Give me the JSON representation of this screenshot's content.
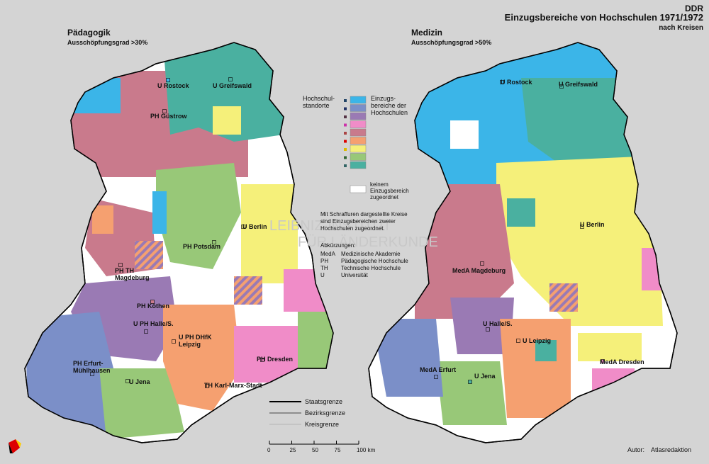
{
  "header": {
    "country": "DDR",
    "title": "Einzugsbereiche von Hochschulen 1971/1972",
    "subtitle": "nach Kreisen"
  },
  "maps": [
    {
      "title": "Pädagogik",
      "subtitle": "Ausschöpfungsgrad >30%",
      "places": [
        {
          "label": [
            "U Rostock"
          ]
        },
        {
          "label": [
            "U Greifswald"
          ]
        },
        {
          "label": [
            "PH Güstrow"
          ]
        },
        {
          "label": [
            "U Berlin"
          ]
        },
        {
          "label": [
            "PH Potsdam"
          ]
        },
        {
          "label": [
            "PH TH",
            "Magdeburg"
          ]
        },
        {
          "label": [
            "PH Köthen"
          ]
        },
        {
          "label": [
            "U PH Halle/S."
          ]
        },
        {
          "label": [
            "U PH DHfK",
            "Leipzig"
          ]
        },
        {
          "label": [
            "PH Dresden"
          ]
        },
        {
          "label": [
            "PH Erfurt-",
            "Mühlhausen"
          ]
        },
        {
          "label": [
            "U Jena"
          ]
        },
        {
          "label": [
            "TH Karl-Marx-Stadt"
          ]
        }
      ]
    },
    {
      "title": "Medizin",
      "subtitle": "Ausschöpfungsgrad >50%",
      "places": [
        {
          "label": [
            "U Rostock"
          ]
        },
        {
          "label": [
            "U Greifswald"
          ]
        },
        {
          "label": [
            "U Berlin"
          ]
        },
        {
          "label": [
            "MedA Magdeburg"
          ]
        },
        {
          "label": [
            "U Halle/S."
          ]
        },
        {
          "label": [
            "U Leipzig"
          ]
        },
        {
          "label": [
            "MedA Dresden"
          ]
        },
        {
          "label": [
            "MedA Erfurt"
          ]
        },
        {
          "label": [
            "U Jena"
          ]
        }
      ]
    }
  ],
  "legend": {
    "locations_label": [
      "Hochschul-",
      "standorte"
    ],
    "areas_label": [
      "Einzugs-",
      "bereiche der",
      "Hochschulen"
    ],
    "unassigned_label": [
      "keinem",
      "Einzugsbereich",
      "zugeordnet"
    ],
    "note": [
      "Mit Schraffuren dargestellte Kreise",
      "sind Einzugsbereichen zweier",
      "Hochschulen zugeordnet."
    ],
    "abbreviations_title": "Abkürzungen:",
    "abbreviations": [
      [
        "MedA",
        "Medizinische Akademie"
      ],
      [
        "PH",
        "Pädagogische Hochschule"
      ],
      [
        "TH",
        "Technische Hochschule"
      ],
      [
        "U",
        "Universität"
      ]
    ],
    "boundaries": [
      "Staatsgrenze",
      "Bezirksgrenze",
      "Kreisgrenze"
    ]
  },
  "scale": {
    "ticks": [
      0,
      25,
      50,
      75,
      {
        "value": 100,
        "label": "100 km"
      }
    ]
  },
  "watermark": [
    "LEIBNIZ-INSTITUT",
    "FÜR LÄNDERKUNDE"
  ],
  "credit": {
    "label": "Autor:",
    "value": "Atlasredaktion"
  }
}
